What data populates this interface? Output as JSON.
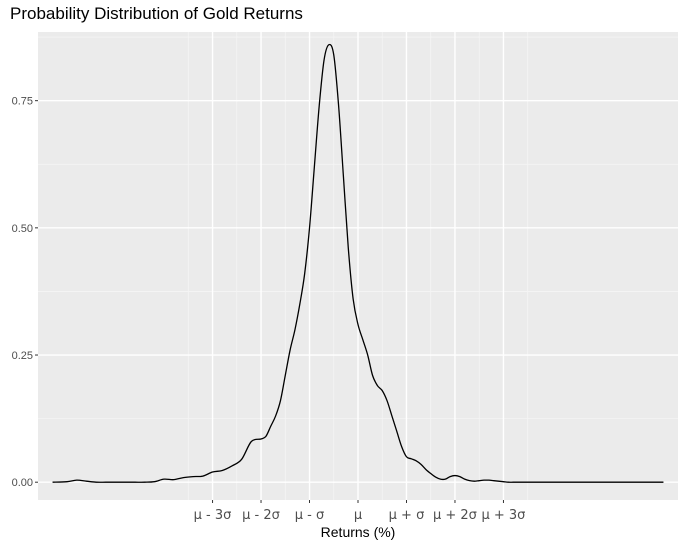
{
  "chart_data": {
    "type": "line",
    "title": "Probability Distribution of Gold Returns",
    "xlabel": "Returns (%)",
    "ylabel": "",
    "ylim": [
      -0.035,
      0.885
    ],
    "xlim": [
      -6.6,
      6.6
    ],
    "grid": true,
    "legend": "none",
    "y_ticks": [
      {
        "value": 0.0,
        "label": "0.00"
      },
      {
        "value": 0.25,
        "label": "0.25"
      },
      {
        "value": 0.5,
        "label": "0.50"
      },
      {
        "value": 0.75,
        "label": "0.75"
      }
    ],
    "x_ticks": [
      {
        "value": -3,
        "label": "μ - 3σ"
      },
      {
        "value": -2,
        "label": "μ - 2σ"
      },
      {
        "value": -1,
        "label": "μ - σ"
      },
      {
        "value": 0,
        "label": "μ"
      },
      {
        "value": 1,
        "label": "μ + σ"
      },
      {
        "value": 2,
        "label": "μ + 2σ"
      },
      {
        "value": 3,
        "label": "μ + 3σ"
      }
    ],
    "series": [
      {
        "x": [
          -6.3,
          -6.0,
          -5.8,
          -5.6,
          -5.4,
          -5.2,
          -5.0,
          -4.8,
          -4.6,
          -4.4,
          -4.2,
          -4.0,
          -3.8,
          -3.6,
          -3.4,
          -3.2,
          -3.0,
          -2.8,
          -2.6,
          -2.4,
          -2.2,
          -2.0,
          -1.9,
          -1.8,
          -1.7,
          -1.6,
          -1.5,
          -1.4,
          -1.3,
          -1.2,
          -1.1,
          -1.0,
          -0.9,
          -0.8,
          -0.7,
          -0.6,
          -0.5,
          -0.4,
          -0.3,
          -0.2,
          -0.1,
          0.0,
          0.1,
          0.2,
          0.3,
          0.4,
          0.5,
          0.6,
          0.7,
          0.8,
          0.9,
          1.0,
          1.1,
          1.2,
          1.3,
          1.4,
          1.5,
          1.6,
          1.7,
          1.8,
          1.9,
          2.0,
          2.1,
          2.2,
          2.3,
          2.4,
          2.5,
          2.6,
          2.7,
          2.8,
          2.9,
          3.0,
          3.1,
          3.2,
          3.3,
          3.4,
          3.5,
          3.6,
          3.7,
          3.8,
          3.9,
          4.0,
          4.2,
          4.4,
          4.6,
          4.8,
          5.0,
          5.5,
          6.0,
          6.3
        ],
        "y": [
          0.0,
          0.001,
          0.004,
          0.002,
          0.0,
          0.0,
          0.0,
          0.0,
          0.0,
          0.0,
          0.001,
          0.006,
          0.005,
          0.009,
          0.011,
          0.012,
          0.02,
          0.023,
          0.032,
          0.045,
          0.08,
          0.085,
          0.09,
          0.11,
          0.13,
          0.16,
          0.21,
          0.26,
          0.3,
          0.35,
          0.41,
          0.5,
          0.62,
          0.74,
          0.83,
          0.86,
          0.84,
          0.74,
          0.6,
          0.46,
          0.36,
          0.31,
          0.28,
          0.25,
          0.21,
          0.19,
          0.18,
          0.16,
          0.13,
          0.1,
          0.07,
          0.05,
          0.046,
          0.042,
          0.035,
          0.025,
          0.017,
          0.01,
          0.006,
          0.006,
          0.011,
          0.013,
          0.011,
          0.006,
          0.003,
          0.002,
          0.003,
          0.004,
          0.004,
          0.003,
          0.002,
          0.001,
          0.0,
          0.0,
          0.0,
          0.0,
          0.0,
          0.0,
          0.0,
          0.0,
          0.0,
          0.0,
          0.0,
          0.0,
          0.0,
          0.0,
          0.0,
          0.0,
          0.0,
          0.0
        ],
        "color": "#000000"
      }
    ],
    "colors": {
      "panel_background": "#ebebeb",
      "grid_major": "#ffffff",
      "grid_minor": "#f5f5f5",
      "line": "#000000"
    }
  }
}
